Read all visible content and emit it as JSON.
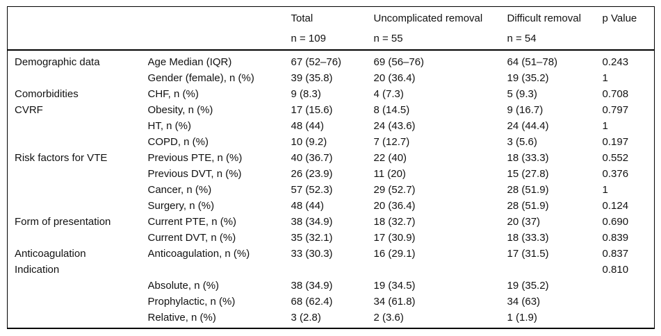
{
  "table": {
    "header": {
      "category_label": "",
      "variable_label": "",
      "total_label": "Total",
      "total_n": "n = 109",
      "uncomplicated_label": "Uncomplicated removal",
      "uncomplicated_n": "n = 55",
      "difficult_label": "Difficult removal",
      "difficult_n": "n = 54",
      "p_label": "p Value"
    },
    "rows": [
      {
        "category": "Demographic data",
        "variable": "Age Median (IQR)",
        "total": "67 (52–76)",
        "uncomplicated": "69 (56–76)",
        "difficult": "64 (51–78)",
        "p": "0.243"
      },
      {
        "category": "",
        "variable": "Gender (female), n (%)",
        "total": "39 (35.8)",
        "uncomplicated": "20 (36.4)",
        "difficult": "19 (35.2)",
        "p": "1"
      },
      {
        "category": "Comorbidities",
        "variable": "CHF, n (%)",
        "total": "9 (8.3)",
        "uncomplicated": "4 (7.3)",
        "difficult": "5 (9.3)",
        "p": "0.708"
      },
      {
        "category": "CVRF",
        "variable": "Obesity, n (%)",
        "total": "17 (15.6)",
        "uncomplicated": "8 (14.5)",
        "difficult": "9 (16.7)",
        "p": "0.797"
      },
      {
        "category": "",
        "variable": "HT, n (%)",
        "total": "48 (44)",
        "uncomplicated": "24 (43.6)",
        "difficult": "24 (44.4)",
        "p": "1"
      },
      {
        "category": "",
        "variable": "COPD, n (%)",
        "total": "10 (9.2)",
        "uncomplicated": "7 (12.7)",
        "difficult": "3 (5.6)",
        "p": "0.197"
      },
      {
        "category": "Risk factors for VTE",
        "variable": "Previous PTE, n (%)",
        "total": "40 (36.7)",
        "uncomplicated": "22 (40)",
        "difficult": "18 (33.3)",
        "p": "0.552"
      },
      {
        "category": "",
        "variable": "Previous DVT, n (%)",
        "total": "26 (23.9)",
        "uncomplicated": "11 (20)",
        "difficult": "15 (27.8)",
        "p": "0.376"
      },
      {
        "category": "",
        "variable": "Cancer, n (%)",
        "total": "57 (52.3)",
        "uncomplicated": "29 (52.7)",
        "difficult": "28 (51.9)",
        "p": "1"
      },
      {
        "category": "",
        "variable": "Surgery, n (%)",
        "total": "48 (44)",
        "uncomplicated": "20 (36.4)",
        "difficult": "28 (51.9)",
        "p": "0.124"
      },
      {
        "category": "Form of presentation",
        "variable": "Current PTE, n (%)",
        "total": "38 (34.9)",
        "uncomplicated": "18 (32.7)",
        "difficult": "20 (37)",
        "p": "0.690"
      },
      {
        "category": "",
        "variable": "Current DVT, n (%)",
        "total": "35 (32.1)",
        "uncomplicated": "17 (30.9)",
        "difficult": "18 (33.3)",
        "p": "0.839"
      },
      {
        "category": "Anticoagulation",
        "variable": "Anticoagulation, n (%)",
        "total": "33 (30.3)",
        "uncomplicated": "16 (29.1)",
        "difficult": "17 (31.5)",
        "p": "0.837"
      },
      {
        "category": "Indication",
        "variable": "",
        "total": "",
        "uncomplicated": "",
        "difficult": "",
        "p": "0.810"
      },
      {
        "category": "",
        "variable": "Absolute, n (%)",
        "total": "38 (34.9)",
        "uncomplicated": "19 (34.5)",
        "difficult": "19 (35.2)",
        "p": ""
      },
      {
        "category": "",
        "variable": "Prophylactic, n (%)",
        "total": "68 (62.4)",
        "uncomplicated": "34 (61.8)",
        "difficult": "34 (63)",
        "p": ""
      },
      {
        "category": "",
        "variable": "Relative, n (%)",
        "total": "3 (2.8)",
        "uncomplicated": "2 (3.6)",
        "difficult": "1 (1.9)",
        "p": ""
      }
    ]
  }
}
